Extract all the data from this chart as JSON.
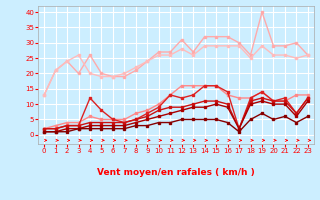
{
  "title": "",
  "xlabel": "Vent moyen/en rafales ( km/h )",
  "background_color": "#cceeff",
  "grid_color": "#ffffff",
  "x_ticks": [
    0,
    1,
    2,
    3,
    4,
    5,
    6,
    7,
    8,
    9,
    10,
    11,
    12,
    13,
    14,
    15,
    16,
    17,
    18,
    19,
    20,
    21,
    22,
    23
  ],
  "ylim": [
    -3,
    42
  ],
  "xlim": [
    -0.5,
    23.5
  ],
  "y_ticks": [
    0,
    5,
    10,
    15,
    20,
    25,
    30,
    35,
    40
  ],
  "series": [
    {
      "x": [
        0,
        1,
        2,
        3,
        4,
        5,
        6,
        7,
        8,
        9,
        10,
        11,
        12,
        13,
        14,
        15,
        16,
        17,
        18,
        19,
        20,
        21,
        22,
        23
      ],
      "y": [
        13,
        21,
        24,
        20,
        26,
        20,
        19,
        19,
        21,
        24,
        27,
        27,
        31,
        27,
        32,
        32,
        32,
        30,
        26,
        40,
        29,
        29,
        30,
        26
      ],
      "color": "#ffaaaa",
      "lw": 1.0,
      "marker": "s",
      "ms": 2.0,
      "zorder": 2
    },
    {
      "x": [
        0,
        1,
        2,
        3,
        4,
        5,
        6,
        7,
        8,
        9,
        10,
        11,
        12,
        13,
        14,
        15,
        16,
        17,
        18,
        19,
        20,
        21,
        22,
        23
      ],
      "y": [
        13,
        21,
        24,
        26,
        20,
        19,
        19,
        20,
        22,
        24,
        26,
        26,
        28,
        26,
        29,
        29,
        29,
        29,
        25,
        29,
        26,
        26,
        25,
        26
      ],
      "color": "#ffbbbb",
      "lw": 1.0,
      "marker": "s",
      "ms": 2.0,
      "zorder": 2
    },
    {
      "x": [
        0,
        1,
        2,
        3,
        4,
        5,
        6,
        7,
        8,
        9,
        10,
        11,
        12,
        13,
        14,
        15,
        16,
        17,
        18,
        19,
        20,
        21,
        22,
        23
      ],
      "y": [
        2,
        3,
        4,
        4,
        6,
        5,
        5,
        5,
        7,
        8,
        10,
        13,
        16,
        16,
        16,
        16,
        13,
        12,
        12,
        14,
        11,
        11,
        13,
        13
      ],
      "color": "#ff8888",
      "lw": 1.0,
      "marker": "s",
      "ms": 2.0,
      "zorder": 3
    },
    {
      "x": [
        0,
        1,
        2,
        3,
        4,
        5,
        6,
        7,
        8,
        9,
        10,
        11,
        12,
        13,
        14,
        15,
        16,
        17,
        18,
        19,
        20,
        21,
        22,
        23
      ],
      "y": [
        2,
        2,
        3,
        3,
        12,
        8,
        5,
        4,
        5,
        7,
        9,
        13,
        12,
        13,
        16,
        16,
        14,
        2,
        12,
        14,
        11,
        12,
        7,
        12
      ],
      "color": "#dd2222",
      "lw": 1.0,
      "marker": "s",
      "ms": 2.0,
      "zorder": 4
    },
    {
      "x": [
        0,
        1,
        2,
        3,
        4,
        5,
        6,
        7,
        8,
        9,
        10,
        11,
        12,
        13,
        14,
        15,
        16,
        17,
        18,
        19,
        20,
        21,
        22,
        23
      ],
      "y": [
        2,
        2,
        3,
        3,
        4,
        4,
        4,
        4,
        5,
        6,
        8,
        9,
        9,
        10,
        11,
        11,
        10,
        2,
        11,
        12,
        11,
        11,
        7,
        12
      ],
      "color": "#cc1111",
      "lw": 1.0,
      "marker": "s",
      "ms": 2.0,
      "zorder": 4
    },
    {
      "x": [
        0,
        1,
        2,
        3,
        4,
        5,
        6,
        7,
        8,
        9,
        10,
        11,
        12,
        13,
        14,
        15,
        16,
        17,
        18,
        19,
        20,
        21,
        22,
        23
      ],
      "y": [
        1,
        1,
        2,
        2,
        3,
        3,
        3,
        3,
        4,
        5,
        6,
        7,
        8,
        9,
        9,
        10,
        9,
        2,
        10,
        11,
        10,
        10,
        6,
        11
      ],
      "color": "#aa0000",
      "lw": 1.0,
      "marker": "s",
      "ms": 2.0,
      "zorder": 4
    },
    {
      "x": [
        0,
        1,
        2,
        3,
        4,
        5,
        6,
        7,
        8,
        9,
        10,
        11,
        12,
        13,
        14,
        15,
        16,
        17,
        18,
        19,
        20,
        21,
        22,
        23
      ],
      "y": [
        1,
        1,
        1,
        2,
        2,
        2,
        2,
        2,
        3,
        3,
        4,
        4,
        5,
        5,
        5,
        5,
        4,
        1,
        5,
        7,
        5,
        6,
        4,
        6
      ],
      "color": "#880000",
      "lw": 1.0,
      "marker": "s",
      "ms": 1.5,
      "zorder": 4
    }
  ]
}
